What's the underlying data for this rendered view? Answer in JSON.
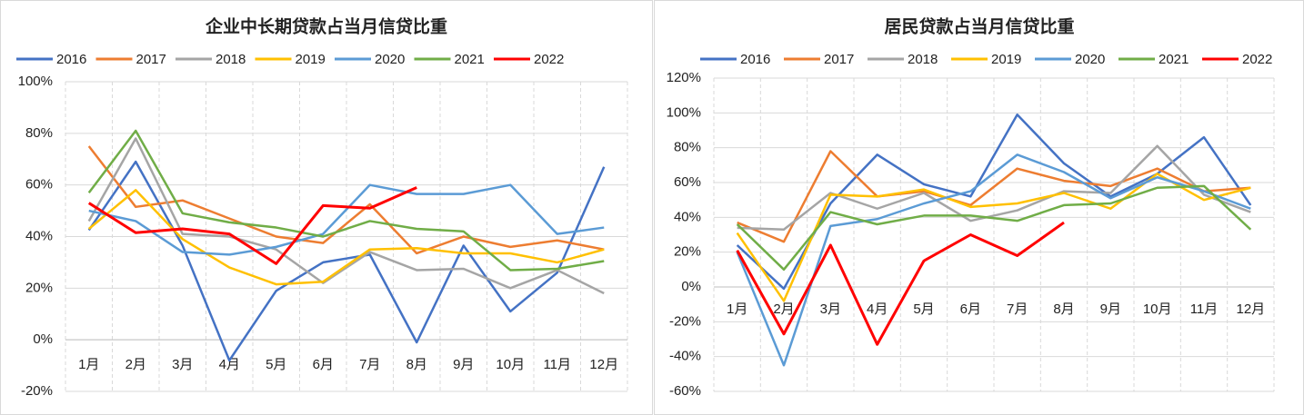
{
  "chart_data": [
    {
      "type": "line",
      "title": "企业中长期贷款占当月信贷比重",
      "categories": [
        "1月",
        "2月",
        "3月",
        "4月",
        "5月",
        "6月",
        "7月",
        "8月",
        "9月",
        "10月",
        "11月",
        "12月"
      ],
      "series": [
        {
          "name": "2016",
          "color": "#4472c4",
          "values": [
            42.5,
            69,
            36.5,
            -8,
            19,
            30,
            33,
            -1,
            36.5,
            11,
            26,
            67
          ]
        },
        {
          "name": "2017",
          "color": "#ed7d31",
          "values": [
            75,
            51.5,
            54,
            47,
            40,
            37.5,
            52.5,
            33.5,
            40,
            36,
            38.5,
            35
          ]
        },
        {
          "name": "2018",
          "color": "#a5a5a5",
          "values": [
            46,
            78,
            41,
            40,
            35,
            22,
            34,
            27,
            27.5,
            20,
            27,
            18
          ]
        },
        {
          "name": "2019",
          "color": "#ffc000",
          "values": [
            43,
            58,
            39,
            28,
            21.5,
            22.5,
            35,
            35.5,
            33.5,
            33.5,
            30,
            35
          ]
        },
        {
          "name": "2020",
          "color": "#5b9bd5",
          "values": [
            50,
            46,
            34,
            33,
            36,
            41,
            60,
            56.5,
            56.5,
            60,
            41,
            43.5
          ]
        },
        {
          "name": "2021",
          "color": "#70ad47",
          "values": [
            57,
            81,
            49,
            45.5,
            43.5,
            40,
            46,
            43,
            42,
            27,
            27.5,
            30.5
          ]
        },
        {
          "name": "2022",
          "color": "#ff0000",
          "values": [
            53,
            41.5,
            43,
            41,
            29.5,
            52,
            51,
            59,
            null,
            null,
            null,
            null
          ]
        }
      ],
      "ylim": [
        -20,
        100
      ],
      "yticks": [
        {
          "value": -20,
          "label": "-20%"
        },
        {
          "value": 0,
          "label": "0%"
        },
        {
          "value": 20,
          "label": "20%"
        },
        {
          "value": 40,
          "label": "40%"
        },
        {
          "value": 60,
          "label": "60%"
        },
        {
          "value": 80,
          "label": "80%"
        },
        {
          "value": 100,
          "label": "100%"
        }
      ],
      "grid": true,
      "legend": "top"
    },
    {
      "type": "line",
      "title": "居民贷款占当月信贷比重",
      "categories": [
        "1月",
        "2月",
        "3月",
        "4月",
        "5月",
        "6月",
        "7月",
        "8月",
        "9月",
        "10月",
        "11月",
        "12月"
      ],
      "series": [
        {
          "name": "2016",
          "color": "#4472c4",
          "values": [
            24,
            -1,
            48,
            76,
            59,
            52,
            99,
            71,
            52,
            65,
            86,
            47
          ]
        },
        {
          "name": "2017",
          "color": "#ed7d31",
          "values": [
            37,
            26,
            78,
            52,
            55,
            47,
            68,
            61,
            58,
            68,
            55,
            57
          ]
        },
        {
          "name": "2018",
          "color": "#a5a5a5",
          "values": [
            34,
            33,
            54,
            45,
            54,
            38,
            44,
            55,
            54,
            81,
            53,
            43
          ]
        },
        {
          "name": "2019",
          "color": "#ffc000",
          "values": [
            31,
            -8,
            53,
            52,
            56,
            46,
            48,
            54,
            45,
            65,
            50,
            57
          ]
        },
        {
          "name": "2020",
          "color": "#5b9bd5",
          "values": [
            20,
            -45,
            35,
            39,
            48,
            55,
            76,
            66,
            51,
            63,
            55,
            45
          ]
        },
        {
          "name": "2021",
          "color": "#70ad47",
          "values": [
            36,
            10,
            43,
            36,
            41,
            41,
            38,
            47,
            48,
            57,
            58,
            33
          ]
        },
        {
          "name": "2022",
          "color": "#ff0000",
          "values": [
            21,
            -27,
            24,
            -33,
            15,
            30,
            18,
            37,
            null,
            null,
            null,
            null
          ]
        }
      ],
      "ylim": [
        -60,
        120
      ],
      "yticks": [
        {
          "value": -60,
          "label": "-60%"
        },
        {
          "value": -40,
          "label": "-40%"
        },
        {
          "value": -20,
          "label": "-20%"
        },
        {
          "value": 0,
          "label": "0%"
        },
        {
          "value": 20,
          "label": "20%"
        },
        {
          "value": 40,
          "label": "40%"
        },
        {
          "value": 60,
          "label": "60%"
        },
        {
          "value": 80,
          "label": "80%"
        },
        {
          "value": 100,
          "label": "100%"
        },
        {
          "value": 120,
          "label": "120%"
        }
      ],
      "grid": true,
      "legend": "top"
    }
  ]
}
